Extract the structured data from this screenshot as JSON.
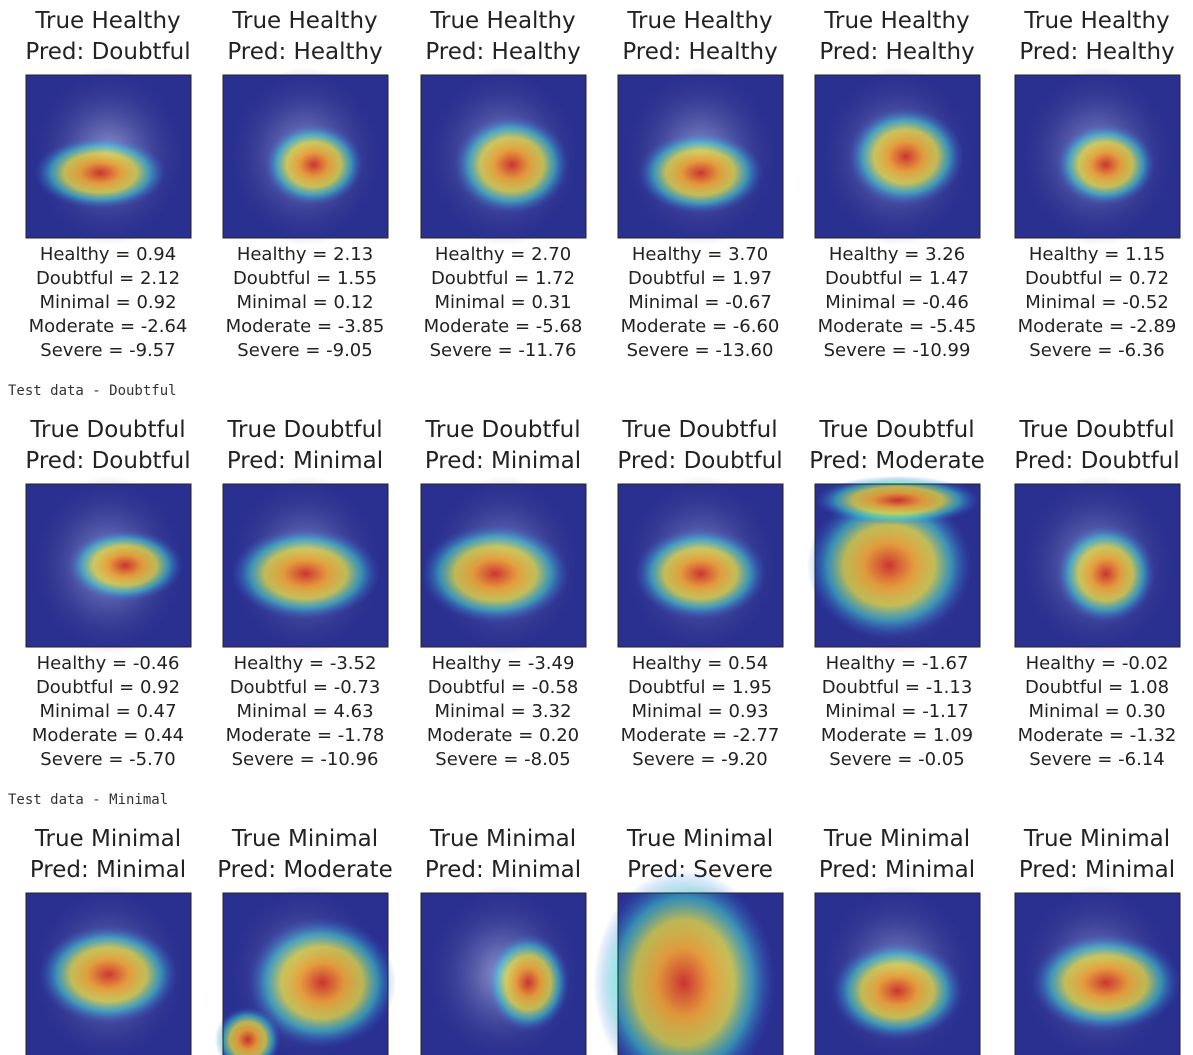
{
  "sections": [
    {
      "panels": [
        {
          "true": "True Healthy",
          "pred": "Pred: Doubtful",
          "scores": [
            "Healthy = 0.94",
            "Doubtful = 2.12",
            "Minimal = 0.92",
            "Moderate = -2.64",
            "Severe = -9.57"
          ]
        },
        {
          "true": "True Healthy",
          "pred": "Pred: Healthy",
          "scores": [
            "Healthy = 2.13",
            "Doubtful = 1.55",
            "Minimal = 0.12",
            "Moderate = -3.85",
            "Severe = -9.05"
          ]
        },
        {
          "true": "True Healthy",
          "pred": "Pred: Healthy",
          "scores": [
            "Healthy = 2.70",
            "Doubtful = 1.72",
            "Minimal = 0.31",
            "Moderate = -5.68",
            "Severe = -11.76"
          ]
        },
        {
          "true": "True Healthy",
          "pred": "Pred: Healthy",
          "scores": [
            "Healthy = 3.70",
            "Doubtful = 1.97",
            "Minimal = -0.67",
            "Moderate = -6.60",
            "Severe = -13.60"
          ]
        },
        {
          "true": "True Healthy",
          "pred": "Pred: Healthy",
          "scores": [
            "Healthy = 3.26",
            "Doubtful = 1.47",
            "Minimal = -0.46",
            "Moderate = -5.45",
            "Severe = -10.99"
          ]
        },
        {
          "true": "True Healthy",
          "pred": "Pred: Healthy",
          "scores": [
            "Healthy = 1.15",
            "Doubtful = 0.72",
            "Minimal = -0.52",
            "Moderate = -2.89",
            "Severe = -6.36"
          ]
        }
      ]
    },
    {
      "label": "Test data - Doubtful",
      "panels": [
        {
          "true": "True Doubtful",
          "pred": "Pred: Doubtful",
          "scores": [
            "Healthy = -0.46",
            "Doubtful = 0.92",
            "Minimal = 0.47",
            "Moderate = 0.44",
            "Severe = -5.70"
          ]
        },
        {
          "true": "True Doubtful",
          "pred": "Pred: Minimal",
          "scores": [
            "Healthy = -3.52",
            "Doubtful = -0.73",
            "Minimal = 4.63",
            "Moderate = -1.78",
            "Severe = -10.96"
          ]
        },
        {
          "true": "True Doubtful",
          "pred": "Pred: Minimal",
          "scores": [
            "Healthy = -3.49",
            "Doubtful = -0.58",
            "Minimal = 3.32",
            "Moderate = 0.20",
            "Severe = -8.05"
          ]
        },
        {
          "true": "True Doubtful",
          "pred": "Pred: Doubtful",
          "scores": [
            "Healthy = 0.54",
            "Doubtful = 1.95",
            "Minimal = 0.93",
            "Moderate = -2.77",
            "Severe = -9.20"
          ]
        },
        {
          "true": "True Doubtful",
          "pred": "Pred: Moderate",
          "scores": [
            "Healthy = -1.67",
            "Doubtful = -1.13",
            "Minimal = -1.17",
            "Moderate = 1.09",
            "Severe = -0.05"
          ]
        },
        {
          "true": "True Doubtful",
          "pred": "Pred: Doubtful",
          "scores": [
            "Healthy = -0.02",
            "Doubtful = 1.08",
            "Minimal = 0.30",
            "Moderate = -1.32",
            "Severe = -6.14"
          ]
        }
      ]
    },
    {
      "label": "Test data - Minimal",
      "panels": [
        {
          "true": "True Minimal",
          "pred": "Pred: Minimal"
        },
        {
          "true": "True Minimal",
          "pred": "Pred: Moderate"
        },
        {
          "true": "True Minimal",
          "pred": "Pred: Minimal"
        },
        {
          "true": "True Minimal",
          "pred": "Pred: Severe"
        },
        {
          "true": "True Minimal",
          "pred": "Pred: Minimal"
        },
        {
          "true": "True Minimal",
          "pred": "Pred: Minimal"
        }
      ]
    }
  ]
}
